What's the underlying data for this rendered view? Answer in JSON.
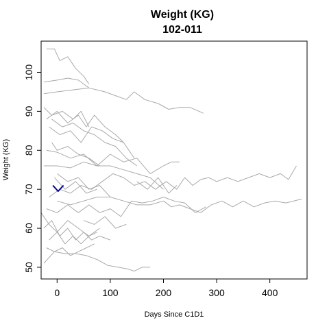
{
  "chart_data": {
    "type": "line",
    "title": "Weight (KG)",
    "subtitle": "102-011",
    "xlabel": "Days Since C1D1",
    "ylabel": "Weight (KG)",
    "xlim": [
      -30,
      470
    ],
    "ylim": [
      47,
      108
    ],
    "xticks": [
      0,
      100,
      200,
      300,
      400
    ],
    "yticks": [
      50,
      60,
      70,
      80,
      90,
      100
    ],
    "grid": false,
    "background_color": "#a9a9a9",
    "highlight_color": "#00008b",
    "series": [
      {
        "highlight": false,
        "x": [
          -20,
          -5,
          5,
          20,
          35,
          50,
          60
        ],
        "y": [
          106,
          106,
          103,
          104,
          101,
          99,
          97
        ]
      },
      {
        "highlight": false,
        "x": [
          -25,
          0,
          20,
          40,
          50,
          60
        ],
        "y": [
          97.5,
          98,
          98.5,
          98,
          97,
          96
        ]
      },
      {
        "highlight": false,
        "x": [
          -25,
          0,
          30,
          60,
          90,
          110,
          130,
          145,
          165,
          190,
          210,
          230,
          250,
          275
        ],
        "y": [
          94.5,
          95,
          95.5,
          96,
          95,
          94,
          93,
          95,
          93,
          92,
          90.5,
          91,
          91,
          89.5
        ]
      },
      {
        "highlight": false,
        "x": [
          -25,
          -10,
          10,
          30,
          45,
          60
        ],
        "y": [
          91,
          89,
          90,
          88,
          90,
          86
        ]
      },
      {
        "highlight": false,
        "x": [
          -20,
          0,
          20,
          40,
          55,
          70,
          90,
          110,
          125
        ],
        "y": [
          88,
          90,
          87,
          89,
          86,
          89,
          86,
          84,
          82
        ]
      },
      {
        "highlight": false,
        "x": [
          -15,
          5,
          25,
          45,
          65,
          85,
          105,
          125,
          145
        ],
        "y": [
          86,
          84,
          85,
          82,
          86,
          85,
          83,
          82,
          78
        ]
      },
      {
        "highlight": false,
        "x": [
          -10,
          10,
          30,
          50,
          70,
          90,
          110,
          130,
          150
        ],
        "y": [
          88,
          86,
          87,
          85,
          84,
          82,
          81,
          78,
          76
        ]
      },
      {
        "highlight": false,
        "x": [
          -10,
          0,
          20,
          40,
          60,
          80
        ],
        "y": [
          82,
          80,
          81,
          79,
          78,
          76
        ]
      },
      {
        "highlight": false,
        "x": [
          -20,
          0,
          25,
          50,
          75,
          100,
          125,
          150,
          175,
          200,
          215,
          230
        ],
        "y": [
          80,
          79.5,
          78,
          79,
          76,
          79,
          77,
          78,
          74,
          76,
          77,
          77
        ]
      },
      {
        "highlight": false,
        "x": [
          -25,
          0,
          25,
          50,
          75,
          100,
          125,
          150,
          175,
          200
        ],
        "y": [
          76,
          76,
          75.5,
          77,
          76,
          76,
          75,
          74,
          73,
          70
        ]
      },
      {
        "highlight": false,
        "x": [
          0,
          20,
          40,
          60,
          80,
          100
        ],
        "y": [
          74,
          72,
          73,
          70,
          71,
          68
        ]
      },
      {
        "highlight": false,
        "x": [
          -15,
          5,
          25,
          45,
          65,
          85,
          105,
          125,
          145,
          165,
          185,
          205,
          225,
          240,
          255,
          270,
          285,
          300,
          320,
          340,
          360,
          380,
          400,
          420,
          435,
          450
        ],
        "y": [
          68,
          70,
          69,
          71,
          70,
          72,
          74,
          73,
          71,
          72,
          70,
          72,
          70,
          73,
          71,
          72.5,
          73,
          72,
          73,
          72,
          73,
          74,
          73,
          74,
          72.5,
          76
        ]
      },
      {
        "highlight": false,
        "x": [
          0,
          25,
          50,
          75,
          100,
          125,
          150,
          175,
          200,
          215,
          230,
          250,
          270,
          290,
          310,
          330,
          350,
          370,
          390,
          410,
          430,
          460
        ],
        "y": [
          67,
          66,
          67,
          68,
          68,
          67,
          66,
          66,
          67,
          65.5,
          66,
          65,
          64,
          66,
          67,
          65.5,
          67,
          65.5,
          66.5,
          67,
          66.5,
          67.5
        ]
      },
      {
        "highlight": false,
        "x": [
          -20,
          0,
          20,
          40,
          60,
          80,
          100,
          120,
          140,
          160,
          180,
          200,
          220,
          240,
          260,
          280
        ],
        "y": [
          65,
          64,
          66,
          64,
          66,
          64,
          65,
          63,
          67,
          66.5,
          67,
          68,
          67,
          66.5,
          64,
          65.5
        ]
      },
      {
        "highlight": false,
        "x": [
          -30,
          -15,
          0,
          20,
          40,
          60,
          80
        ],
        "y": [
          64,
          61,
          59,
          62,
          60,
          58,
          60
        ]
      },
      {
        "highlight": false,
        "x": [
          -25,
          -10,
          5,
          20,
          35,
          50,
          65,
          80,
          100
        ],
        "y": [
          60,
          62,
          58,
          60,
          57,
          59,
          57,
          58,
          57
        ]
      },
      {
        "highlight": false,
        "x": [
          -15,
          0,
          15,
          30,
          45,
          60,
          75
        ],
        "y": [
          57,
          59,
          56,
          58,
          56,
          58,
          59
        ]
      },
      {
        "highlight": false,
        "x": [
          -20,
          -5,
          10,
          25,
          40,
          55,
          70
        ],
        "y": [
          55,
          54,
          55,
          53,
          54,
          55,
          56
        ]
      },
      {
        "highlight": false,
        "x": [
          -25,
          -5,
          15,
          35,
          55,
          75,
          95,
          115,
          135,
          145,
          160,
          175
        ],
        "y": [
          51,
          54,
          53.5,
          53.5,
          53,
          52,
          50.5,
          50,
          49.5,
          49,
          50,
          50
        ]
      },
      {
        "highlight": false,
        "x": [
          -5,
          15,
          35,
          55,
          75
        ],
        "y": [
          73,
          70,
          72,
          69,
          70
        ]
      },
      {
        "highlight": false,
        "x": [
          50,
          70,
          90,
          110,
          130
        ],
        "y": [
          62,
          61,
          63,
          60,
          61
        ]
      },
      {
        "highlight": false,
        "x": [
          150,
          170,
          190,
          210,
          225
        ],
        "y": [
          72,
          70,
          73,
          69,
          71
        ]
      },
      {
        "highlight": true,
        "x": [
          -8,
          2,
          12
        ],
        "y": [
          71,
          69.5,
          71
        ]
      }
    ]
  }
}
